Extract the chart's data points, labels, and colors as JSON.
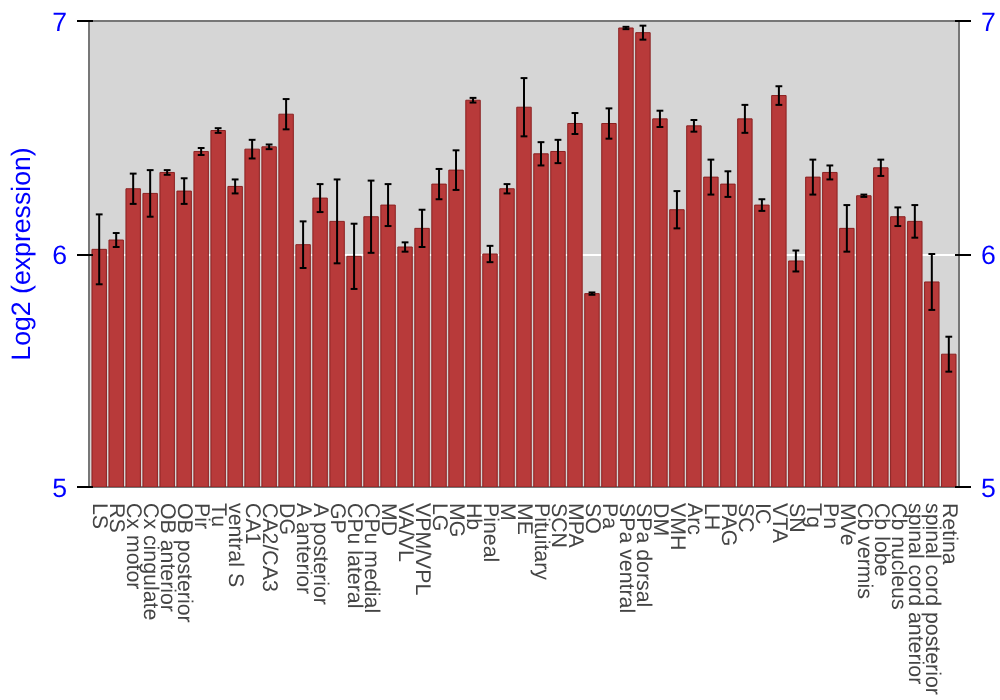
{
  "chart_data": {
    "type": "bar",
    "ylabel": "Log2 (expression)",
    "categories": [
      "LS",
      "RS",
      "Cx motor",
      "Cx cingulate",
      "OB anterior",
      "OB posterior",
      "Pir",
      "Tu",
      "ventral S",
      "CA1",
      "CA2/CA3",
      "DG",
      "A anterior",
      "A posterior",
      "GP",
      "CPu lateral",
      "CPu medial",
      "MD",
      "VA/VL",
      "VPM/VPL",
      "LG",
      "MG",
      "Hb",
      "Pineal",
      "M",
      "ME",
      "Pituitary",
      "SCN",
      "MPA",
      "SO",
      "Pa",
      "SPa ventral",
      "SPa dorsal",
      "DM",
      "VMH",
      "Arc",
      "LH",
      "PAG",
      "SC",
      "IC",
      "VTA",
      "SN",
      "Tg",
      "Pn",
      "MVe",
      "Cb vermis",
      "Cb lobe",
      "Cb nucleus",
      "spinal cord anterior",
      "spinal cord posterior",
      "Retina"
    ],
    "values": [
      6.02,
      6.06,
      6.28,
      6.26,
      6.35,
      6.27,
      6.44,
      6.53,
      6.29,
      6.45,
      6.46,
      6.6,
      6.04,
      6.24,
      6.14,
      5.99,
      6.16,
      6.21,
      6.03,
      6.11,
      6.3,
      6.36,
      6.66,
      6.0,
      6.28,
      6.63,
      6.43,
      6.44,
      6.56,
      5.83,
      6.56,
      6.97,
      6.95,
      6.58,
      6.19,
      6.55,
      6.33,
      6.3,
      6.58,
      6.21,
      6.68,
      5.97,
      6.33,
      6.35,
      6.11,
      6.25,
      6.37,
      6.16,
      6.14,
      5.88,
      5.57
    ],
    "errors": [
      0.15,
      0.03,
      0.065,
      0.1,
      0.01,
      0.055,
      0.015,
      0.01,
      0.03,
      0.04,
      0.01,
      0.065,
      0.1,
      0.06,
      0.18,
      0.14,
      0.155,
      0.09,
      0.02,
      0.08,
      0.065,
      0.085,
      0.01,
      0.035,
      0.02,
      0.125,
      0.05,
      0.05,
      0.045,
      0.005,
      0.065,
      0.005,
      0.03,
      0.035,
      0.08,
      0.025,
      0.075,
      0.055,
      0.06,
      0.025,
      0.04,
      0.045,
      0.075,
      0.03,
      0.1,
      0.005,
      0.035,
      0.04,
      0.07,
      0.12,
      0.075
    ],
    "color": "#b83a3a",
    "ylim": [
      5,
      7
    ],
    "yticks": [
      5,
      6,
      7
    ],
    "y2lim": [
      5,
      7
    ],
    "y2ticks": [
      5,
      6,
      7
    ],
    "grid": "y"
  }
}
